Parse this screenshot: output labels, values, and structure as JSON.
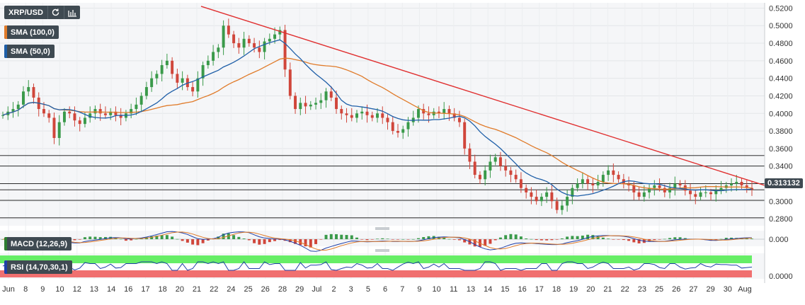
{
  "header": {
    "pair": "XRP/USD",
    "refresh_icon": "refresh-icon",
    "chart_type_icon": "bar-chart-icon"
  },
  "legend": {
    "sma100": {
      "label": "SMA (100,0)",
      "color": "#e07b2a"
    },
    "sma50": {
      "label": "SMA (50,0)",
      "color": "#1f5fa8"
    },
    "macd": {
      "label": "MACD (12,26,9)",
      "color": "#2e7d32"
    },
    "rsi": {
      "label": "RSI (14,70,30,1)",
      "color": "#1f3fa8"
    }
  },
  "price_tag": "0.313132",
  "chart_data": {
    "type": "candlestick",
    "y_ticks": [
      "0.5200",
      "0.5000",
      "0.4800",
      "0.4600",
      "0.4400",
      "0.4200",
      "0.4000",
      "0.3800",
      "0.3600",
      "0.3400",
      "0.3200",
      "0.3000",
      "0.2800"
    ],
    "ylim": [
      0.272,
      0.526
    ],
    "macd_tick": "0.000",
    "rsi_tick": "0.0000",
    "x_ticks": [
      "Jun",
      "8",
      "9",
      "10",
      "12",
      "13",
      "14",
      "16",
      "17",
      "18",
      "20",
      "21",
      "22",
      "24",
      "25",
      "26",
      "28",
      "29",
      "Jul",
      "2",
      "3",
      "5",
      "6",
      "7",
      "9",
      "10",
      "11",
      "13",
      "14",
      "15",
      "16",
      "17",
      "18",
      "19",
      "20",
      "21",
      "22",
      "23",
      "25",
      "26",
      "27",
      "29",
      "30",
      "Aug"
    ],
    "horizontal_levels": [
      0.352,
      0.34,
      0.32,
      0.313,
      0.301,
      0.281
    ],
    "trendline": {
      "from": 0.522,
      "to": 0.318
    },
    "close_series": [
      0.398,
      0.402,
      0.405,
      0.41,
      0.425,
      0.43,
      0.418,
      0.405,
      0.4,
      0.395,
      0.372,
      0.39,
      0.402,
      0.4,
      0.392,
      0.388,
      0.395,
      0.4,
      0.405,
      0.4,
      0.398,
      0.402,
      0.398,
      0.395,
      0.4,
      0.405,
      0.41,
      0.42,
      0.43,
      0.44,
      0.445,
      0.455,
      0.46,
      0.445,
      0.435,
      0.44,
      0.43,
      0.425,
      0.44,
      0.455,
      0.46,
      0.47,
      0.475,
      0.5,
      0.49,
      0.48,
      0.475,
      0.485,
      0.48,
      0.475,
      0.47,
      0.482,
      0.485,
      0.49,
      0.495,
      0.45,
      0.42,
      0.405,
      0.412,
      0.408,
      0.41,
      0.412,
      0.415,
      0.425,
      0.418,
      0.405,
      0.4,
      0.398,
      0.395,
      0.4,
      0.402,
      0.398,
      0.395,
      0.4,
      0.395,
      0.39,
      0.38,
      0.378,
      0.382,
      0.39,
      0.395,
      0.405,
      0.4,
      0.398,
      0.402,
      0.4,
      0.405,
      0.4,
      0.395,
      0.39,
      0.36,
      0.345,
      0.33,
      0.325,
      0.335,
      0.345,
      0.35,
      0.34,
      0.335,
      0.33,
      0.325,
      0.315,
      0.31,
      0.305,
      0.3,
      0.305,
      0.31,
      0.3,
      0.29,
      0.295,
      0.305,
      0.315,
      0.32,
      0.325,
      0.32,
      0.318,
      0.322,
      0.33,
      0.335,
      0.33,
      0.325,
      0.32,
      0.318,
      0.31,
      0.305,
      0.31,
      0.315,
      0.318,
      0.315,
      0.31,
      0.315,
      0.32,
      0.318,
      0.312,
      0.308,
      0.305,
      0.31,
      0.31,
      0.308,
      0.312,
      0.315,
      0.318,
      0.32,
      0.322,
      0.318,
      0.315,
      0.313
    ]
  }
}
